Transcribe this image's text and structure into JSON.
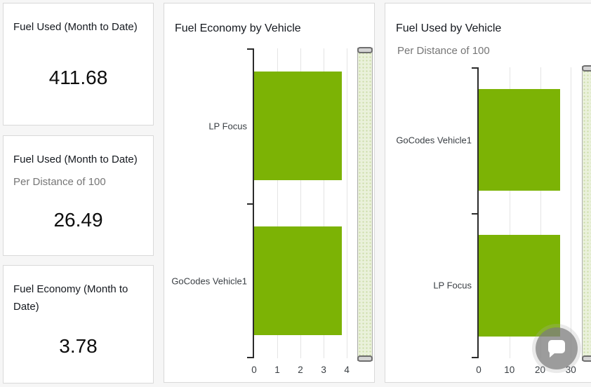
{
  "colors": {
    "bar_green": "#7CB305",
    "title_text": "#15191F",
    "subtitle_text": "#767676",
    "axis": "#2B2B2B",
    "gridline": "#E4E4E4",
    "slider_track": "#EAF1DB",
    "panel_border": "#D9D9D9"
  },
  "cards": [
    {
      "title": "Fuel Used (Month to Date)",
      "subtitle": "",
      "value": "411.68"
    },
    {
      "title": "Fuel Used (Month to Date)",
      "subtitle": "Per Distance of 100",
      "value": "26.49"
    },
    {
      "title": "Fuel Economy (Month to Date)",
      "subtitle": "",
      "value": "3.78"
    }
  ],
  "chat_button": {
    "icon": "speech-bubble-icon"
  },
  "chart_data": [
    {
      "type": "bar",
      "orientation": "horizontal",
      "title": "Fuel Economy by Vehicle",
      "subtitle": "",
      "categories": [
        "LP Focus",
        "GoCodes Vehicle1"
      ],
      "values": [
        3.78,
        3.78
      ],
      "xticks": [
        0,
        1,
        2,
        3,
        4
      ],
      "xlim": [
        0,
        4.45
      ],
      "xlabel": "",
      "ylabel": "",
      "grid": true,
      "legend": false,
      "bar_color": "#7CB305"
    },
    {
      "type": "bar",
      "orientation": "horizontal",
      "title": "Fuel Used by Vehicle",
      "subtitle": "Per Distance of 100",
      "categories": [
        "GoCodes Vehicle1",
        "LP Focus"
      ],
      "values": [
        26.49,
        26.49
      ],
      "xticks": [
        0,
        10,
        20,
        30
      ],
      "xlim": [
        0,
        33.6
      ],
      "xlabel": "",
      "ylabel": "",
      "grid": true,
      "legend": false,
      "bar_color": "#7CB305"
    }
  ]
}
